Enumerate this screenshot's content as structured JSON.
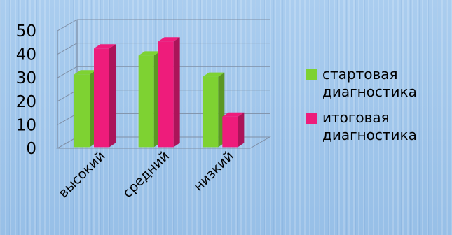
{
  "chart_data": {
    "type": "bar",
    "categories": [
      "высокий",
      "средний",
      "низкий"
    ],
    "series": [
      {
        "name": "стартовая диагностика",
        "values": [
          31,
          39,
          30
        ],
        "color": "#7ed232"
      },
      {
        "name": "итоговая диагностика",
        "values": [
          42,
          45,
          13
        ],
        "color": "#ee1c7b"
      }
    ],
    "yticks": [
      "0",
      "10",
      "20",
      "30",
      "40",
      "50"
    ],
    "ylim": [
      0,
      50
    ],
    "legend_position": "right",
    "grid": true
  },
  "legend": {
    "item1": "стартовая диагностика",
    "item2": "итоговая диагностика"
  }
}
